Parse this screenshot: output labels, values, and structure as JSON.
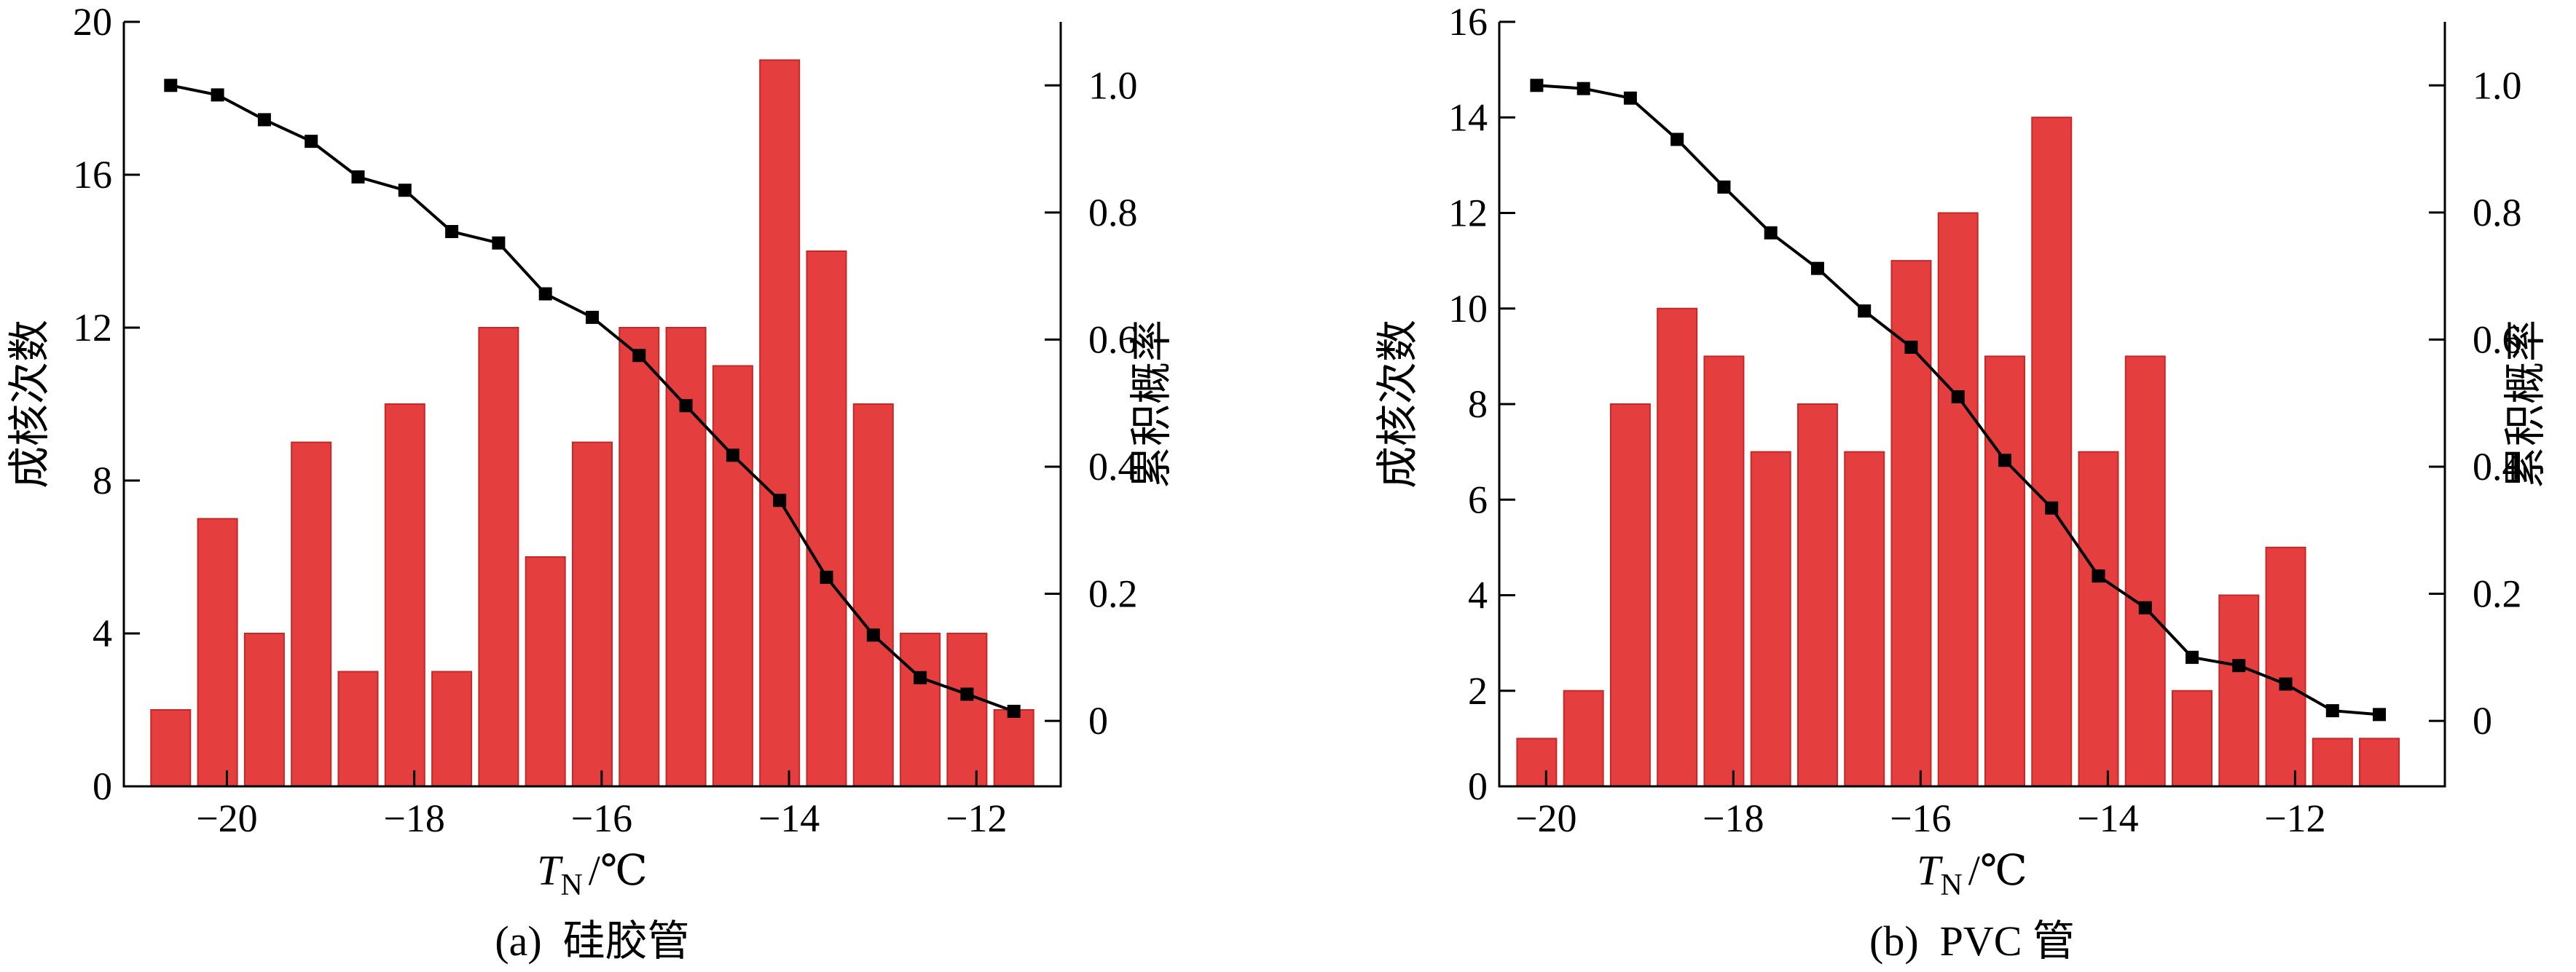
{
  "colors": {
    "bar": "#e53e3e",
    "bar_edge": "#c62828",
    "line": "#000000"
  },
  "chart_data": [
    {
      "type": "bar",
      "caption": "(a)  硅胶管",
      "xlabel": "T",
      "xlabel_sub": "N",
      "xlabel_unit": "/℃",
      "ylabel": "成核次数",
      "y2label": "累积概率",
      "xlim": [
        -21.1,
        -11.1
      ],
      "ylim": [
        0,
        20
      ],
      "y2lim": [
        -0.103,
        1.1
      ],
      "xticks": [
        -20,
        -18,
        -16,
        -14,
        -12
      ],
      "xtick_labels": [
        "−20",
        "−18",
        "−16",
        "−14",
        "−12"
      ],
      "yticks": [
        0,
        4,
        8,
        12,
        16,
        20
      ],
      "y2ticks": [
        0,
        0.2,
        0.4,
        0.6,
        0.8,
        1.0
      ],
      "y2tick_labels": [
        "0",
        "0.2",
        "0.4",
        "0.6",
        "0.8",
        "1.0"
      ],
      "bar_width": 0.42,
      "x": [
        -20.6,
        -20.1,
        -19.6,
        -19.1,
        -18.6,
        -18.1,
        -17.6,
        -17.1,
        -16.6,
        -16.1,
        -15.6,
        -15.1,
        -14.6,
        -14.1,
        -13.6,
        -13.1,
        -12.6,
        -12.1,
        -11.6
      ],
      "series": [
        {
          "type": "bar",
          "axis": "left",
          "values": [
            2,
            7,
            4,
            9,
            3,
            10,
            3,
            12,
            6,
            9,
            12,
            12,
            11,
            19,
            14,
            10,
            4,
            4,
            2
          ]
        },
        {
          "type": "line",
          "axis": "right",
          "marker": "square",
          "values": [
            1.0,
            0.985,
            0.946,
            0.912,
            0.856,
            0.835,
            0.77,
            0.752,
            0.672,
            0.635,
            0.575,
            0.496,
            0.418,
            0.347,
            0.226,
            0.135,
            0.068,
            0.042,
            0.015
          ]
        }
      ]
    },
    {
      "type": "bar",
      "caption": "(b)  PVC 管",
      "xlabel": "T",
      "xlabel_sub": "N",
      "xlabel_unit": "/℃",
      "ylabel": "成核次数",
      "y2label": "累积概率",
      "xlim": [
        -20.5,
        -10.4
      ],
      "ylim": [
        0,
        16
      ],
      "y2lim": [
        -0.103,
        1.1
      ],
      "xticks": [
        -20,
        -18,
        -16,
        -14,
        -12
      ],
      "xtick_labels": [
        "−20",
        "−18",
        "−16",
        "−14",
        "−12"
      ],
      "yticks": [
        0,
        2,
        4,
        6,
        8,
        10,
        12,
        14,
        16
      ],
      "y2ticks": [
        0,
        0.2,
        0.4,
        0.6,
        0.8,
        1.0
      ],
      "y2tick_labels": [
        "0",
        "0.2",
        "0.4",
        "0.6",
        "0.8",
        "1.0"
      ],
      "bar_width": 0.42,
      "x": [
        -20.1,
        -19.6,
        -19.1,
        -18.6,
        -18.1,
        -17.6,
        -17.1,
        -16.6,
        -16.1,
        -15.6,
        -15.1,
        -14.6,
        -14.1,
        -13.6,
        -13.1,
        -12.6,
        -12.1,
        -11.6,
        -11.1
      ],
      "series": [
        {
          "type": "bar",
          "axis": "left",
          "values": [
            1,
            2,
            8,
            10,
            9,
            7,
            8,
            7,
            11,
            12,
            9,
            14,
            7,
            9,
            2,
            4,
            5,
            1,
            1
          ]
        },
        {
          "type": "line",
          "axis": "right",
          "marker": "square",
          "values": [
            1.0,
            0.995,
            0.98,
            0.915,
            0.84,
            0.768,
            0.712,
            0.645,
            0.588,
            0.51,
            0.41,
            0.335,
            0.228,
            0.178,
            0.1,
            0.087,
            0.058,
            0.016,
            0.01
          ]
        }
      ]
    }
  ]
}
